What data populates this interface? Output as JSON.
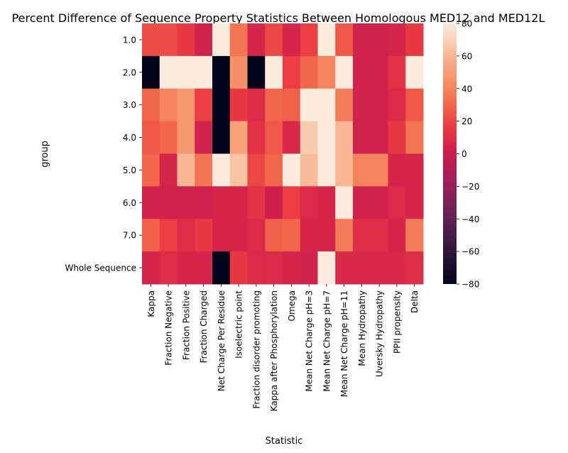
{
  "chart_data": {
    "type": "heatmap",
    "title": "Percent Difference of Sequence Property Statistics Between Homologous MED12 and MED12L",
    "xlabel": "Statistic",
    "ylabel": "group",
    "x_categories": [
      "Kappa",
      "Fraction Negative",
      "Fraction Positive",
      "Fraction Charged",
      "Net Charge Per Residue",
      "Isoelectric point",
      "Fraction disorder promoting",
      "Kappa after Phosphorylation",
      "Omega",
      "Mean Net Charge pH=3",
      "Mean Net Charge pH=7",
      "Mean Net Charge pH=11",
      "Mean Hydropathy",
      "Uversky Hydropathy",
      "PPII propensity",
      "Delta"
    ],
    "y_categories": [
      "1.0",
      "2.0",
      "3.0",
      "4.0",
      "5.0",
      "6.0",
      "7.0",
      "Whole Sequence"
    ],
    "values": [
      [
        22,
        22,
        15,
        3,
        80,
        35,
        5,
        20,
        5,
        17,
        80,
        25,
        3,
        3,
        5,
        15
      ],
      [
        -80,
        80,
        80,
        80,
        -80,
        45,
        -80,
        80,
        17,
        30,
        40,
        80,
        3,
        3,
        12,
        80
      ],
      [
        30,
        40,
        48,
        17,
        -80,
        15,
        8,
        30,
        28,
        80,
        80,
        38,
        3,
        3,
        8,
        25
      ],
      [
        25,
        30,
        48,
        3,
        -80,
        52,
        12,
        25,
        7,
        68,
        80,
        60,
        3,
        3,
        15,
        35
      ],
      [
        30,
        5,
        60,
        35,
        80,
        65,
        20,
        30,
        80,
        62,
        80,
        60,
        40,
        40,
        5,
        5
      ],
      [
        3,
        3,
        3,
        3,
        5,
        5,
        12,
        2,
        17,
        8,
        5,
        80,
        3,
        3,
        8,
        5
      ],
      [
        28,
        17,
        10,
        15,
        5,
        5,
        8,
        28,
        30,
        5,
        5,
        38,
        10,
        10,
        5,
        38
      ],
      [
        5,
        10,
        5,
        5,
        -80,
        15,
        8,
        8,
        5,
        3,
        80,
        7,
        7,
        7,
        7,
        10
      ]
    ],
    "colorbar": {
      "min": -80,
      "max": 80,
      "ticks": [
        "−80",
        "−60",
        "−40",
        "−20",
        "0",
        "20",
        "40",
        "60",
        "80"
      ],
      "colormap": "rocket"
    },
    "grid": false,
    "legend": "none"
  }
}
